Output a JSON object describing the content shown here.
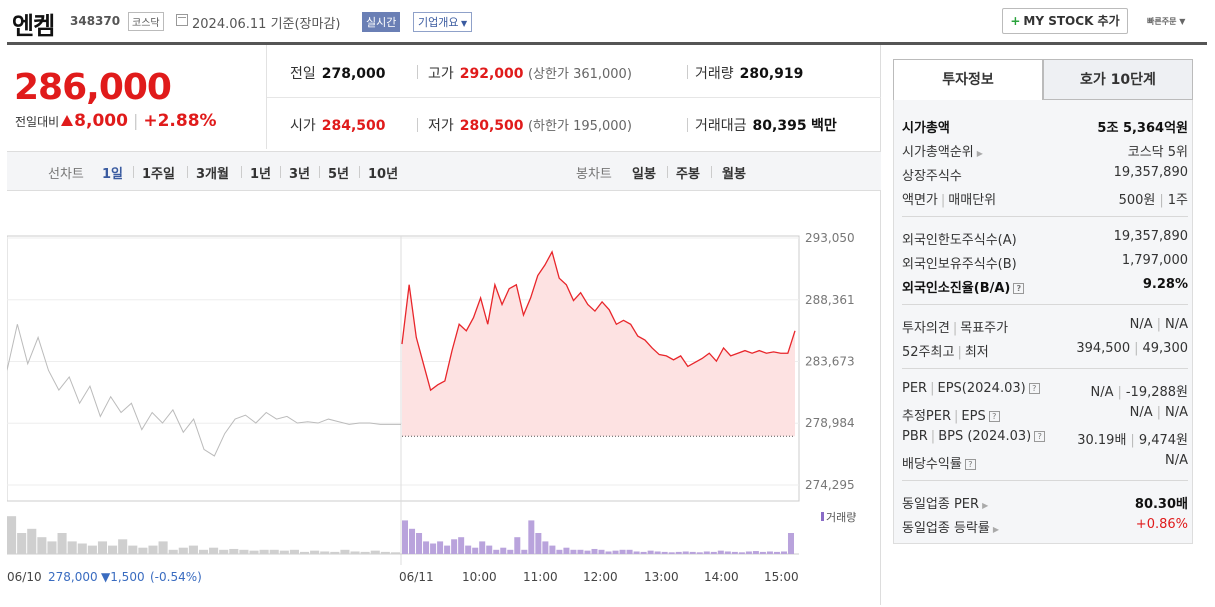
{
  "header": {
    "name": "엔켐",
    "code": "348370",
    "market": "코스닥",
    "date": "2024.06.11  기준(장마감)",
    "live_label": "실시간",
    "overview_label": "기업개요",
    "mystock_label": "MY STOCK 추가",
    "quick_order_label": "빠른주문"
  },
  "quote": {
    "price": "286,000",
    "diff_label": "전일대비",
    "diff_value": "8,000",
    "diff_rate": "+2.88%",
    "prev_label": "전일",
    "prev": "278,000",
    "high_label": "고가",
    "high": "292,000",
    "upper_limit": "(상한가 361,000)",
    "volume_label": "거래량",
    "volume": "280,919",
    "open_label": "시가",
    "open": "284,500",
    "low_label": "저가",
    "low": "280,500",
    "lower_limit": "(하한가 195,000)",
    "amount_label": "거래대금",
    "amount": "80,395",
    "amount_unit": "백만"
  },
  "chart_tabs": {
    "line_label": "선차트",
    "line_periods": [
      "1일",
      "1주일",
      "3개월",
      "1년",
      "3년",
      "5년",
      "10년"
    ],
    "active": "1일",
    "candle_label": "봉차트",
    "candle_periods": [
      "일봉",
      "주봉",
      "월봉"
    ]
  },
  "chart_data": {
    "type": "line",
    "title": "",
    "y_ticks": [
      "293,050",
      "288,361",
      "283,673",
      "278,984",
      "274,295"
    ],
    "ylim": [
      274295,
      293050
    ],
    "prev_close": 278000,
    "x_labels": [
      "06/10",
      "06/11",
      "10:00",
      "11:00",
      "12:00",
      "13:00",
      "14:00",
      "15:00"
    ],
    "prev_day_footer": {
      "close": "278,000",
      "change": "▼1,500",
      "rate": "(-0.54%)"
    },
    "volume_label": "거래량",
    "series": [
      {
        "key": "prev-day",
        "color": "#bbbbbb",
        "values": [
          283000,
          286500,
          283500,
          285500,
          283000,
          281500,
          282500,
          280500,
          281800,
          279500,
          281000,
          279800,
          280500,
          278500,
          279800,
          279000,
          280000,
          278300,
          279300,
          277000,
          276500,
          278200,
          279300,
          279600,
          279000,
          279800,
          279300,
          279500,
          279000,
          279100,
          279000,
          279300,
          279100,
          278900,
          279000,
          279000,
          278900,
          278900,
          278900
        ]
      },
      {
        "key": "today",
        "color": "#e8262b",
        "fill": "#fde2e2",
        "values": [
          285000,
          289500,
          285500,
          283500,
          281500,
          281900,
          282200,
          284500,
          286500,
          286000,
          287000,
          288500,
          286500,
          289500,
          288000,
          289200,
          289500,
          287200,
          288500,
          290200,
          291000,
          292000,
          290000,
          289500,
          288300,
          288900,
          288000,
          287500,
          288200,
          287600,
          286500,
          286800,
          286500,
          285600,
          285300,
          284700,
          284200,
          284100,
          283800,
          284100,
          283300,
          283600,
          283900,
          284300,
          283700,
          284700,
          284100,
          284300,
          284500,
          284300,
          284500,
          284300,
          284400,
          284300,
          284300,
          286000
        ]
      }
    ],
    "prev_volume": [
      0.9,
      0.5,
      0.6,
      0.4,
      0.3,
      0.5,
      0.3,
      0.25,
      0.2,
      0.3,
      0.2,
      0.35,
      0.2,
      0.15,
      0.2,
      0.3,
      0.1,
      0.15,
      0.2,
      0.1,
      0.15,
      0.1,
      0.12,
      0.1,
      0.08,
      0.1,
      0.1,
      0.08,
      0.1,
      0.05,
      0.08,
      0.06,
      0.05,
      0.1,
      0.06,
      0.05,
      0.08,
      0.05,
      0.04
    ],
    "today_volume": [
      0.8,
      0.6,
      0.5,
      0.3,
      0.25,
      0.3,
      0.2,
      0.35,
      0.4,
      0.2,
      0.15,
      0.3,
      0.2,
      0.1,
      0.15,
      0.1,
      0.4,
      0.1,
      0.8,
      0.5,
      0.3,
      0.2,
      0.1,
      0.15,
      0.1,
      0.1,
      0.08,
      0.12,
      0.1,
      0.06,
      0.08,
      0.1,
      0.1,
      0.06,
      0.05,
      0.08,
      0.06,
      0.05,
      0.04,
      0.05,
      0.06,
      0.05,
      0.04,
      0.06,
      0.05,
      0.08,
      0.06,
      0.05,
      0.04,
      0.06,
      0.07,
      0.05,
      0.06,
      0.05,
      0.06,
      0.5
    ]
  },
  "invest": {
    "tab1": "투자정보",
    "tab2": "호가 10단계",
    "rows": [
      {
        "k": "시가총액",
        "v": "5조 5,364억원",
        "kb": true,
        "vb": true
      },
      {
        "k": "시가총액순위",
        "v": "코스닥 5위",
        "arrow": true
      },
      {
        "k": "상장주식수",
        "v": "19,357,890"
      },
      {
        "k": "액면가",
        "k2": "매매단위",
        "v": "500원",
        "v2": "1주"
      },
      {
        "sep": true
      },
      {
        "k": "외국인한도주식수(A)",
        "v": "19,357,890"
      },
      {
        "k": "외국인보유주식수(B)",
        "v": "1,797,000"
      },
      {
        "k": "외국인소진율(B/A)",
        "v": "9.28%",
        "kb": true,
        "vb": true,
        "q": true
      },
      {
        "sep": true
      },
      {
        "k": "투자의견",
        "k2": "목표주가",
        "v": "N/A",
        "v2": "N/A"
      },
      {
        "k": "52주최고",
        "k2": "최저",
        "v": "394,500",
        "v2": "49,300"
      },
      {
        "sep": true
      },
      {
        "k": "PER",
        "k2": "EPS(2024.03)",
        "v": "N/A",
        "v2": "-19,288원",
        "q": true
      },
      {
        "k": "추정PER",
        "k2": "EPS",
        "v": "N/A",
        "v2": "N/A",
        "q": true
      },
      {
        "k": "PBR",
        "k2": "BPS (2024.03)",
        "v": "30.19배",
        "v2": "9,474원",
        "q": true
      },
      {
        "k": "배당수익률",
        "v": "N/A",
        "q": true
      },
      {
        "sep": true
      },
      {
        "k": "동일업종 PER",
        "v": "80.30배",
        "arrow": true,
        "vb": true
      },
      {
        "k": "동일업종 등락률",
        "v": "+0.86%",
        "arrow": true,
        "vred": true
      }
    ]
  }
}
